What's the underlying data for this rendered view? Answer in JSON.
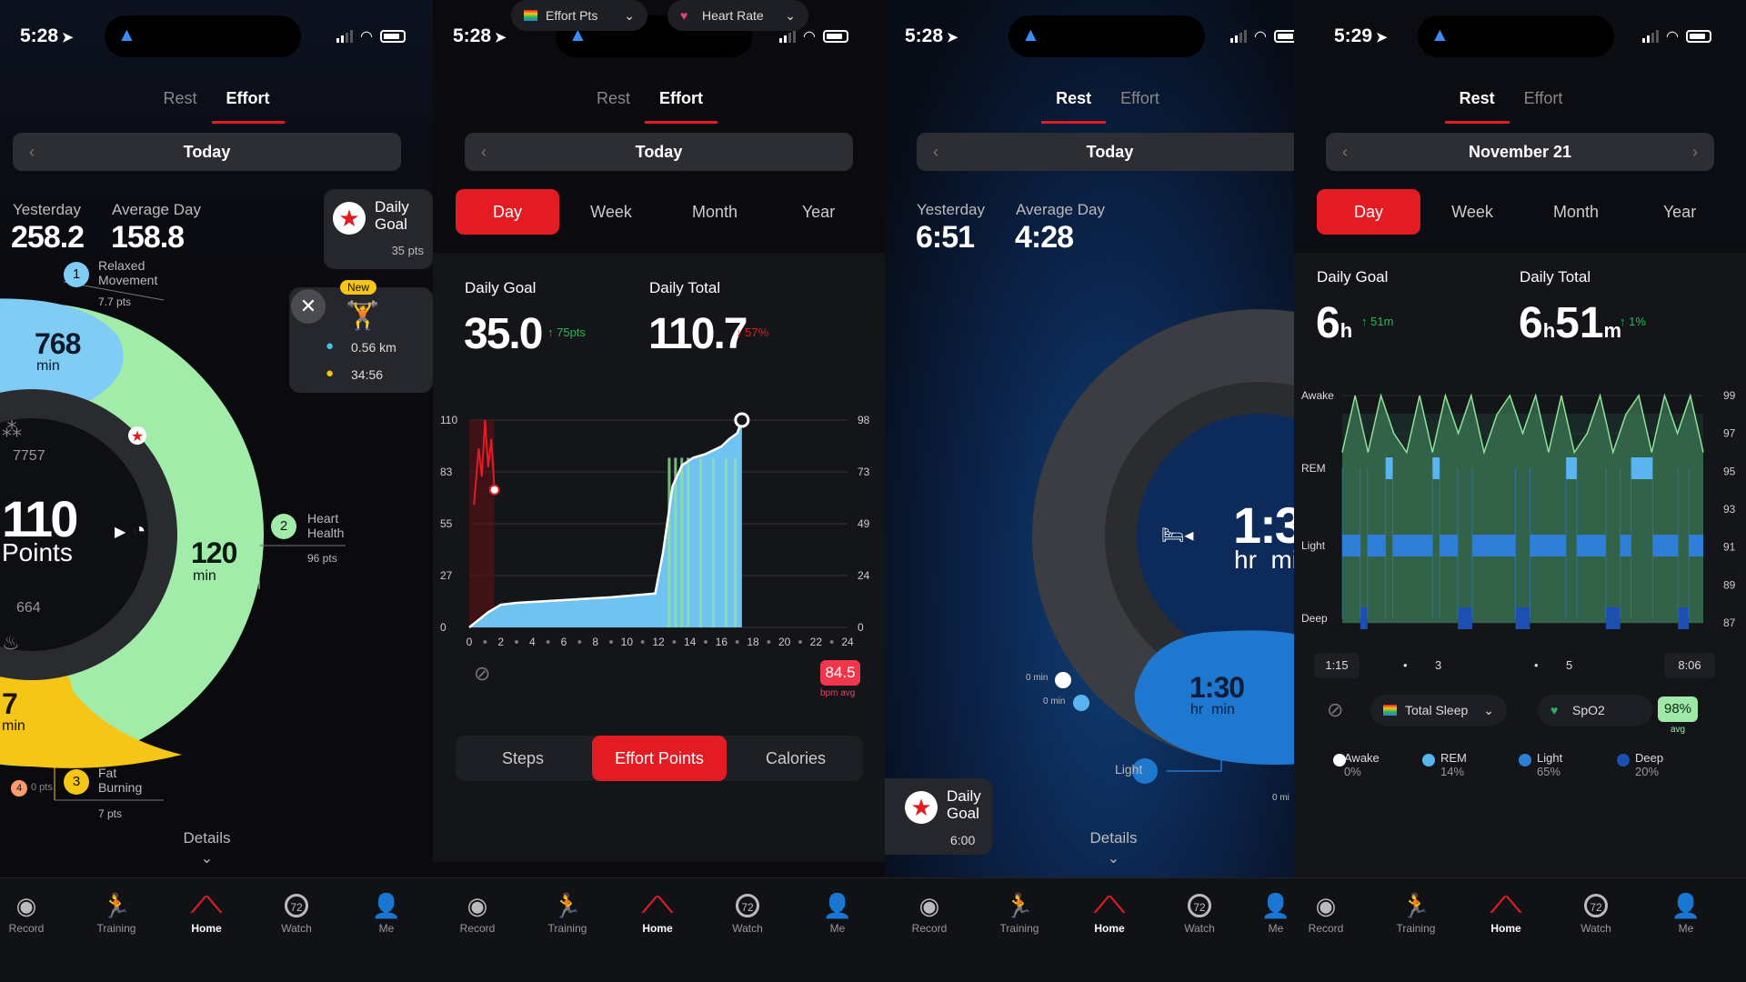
{
  "status": [
    {
      "time": "5:28"
    },
    {
      "time": "5:28"
    },
    {
      "time": "5:28"
    },
    {
      "time": "5:29"
    }
  ],
  "tabs": {
    "rest": "Rest",
    "effort": "Effort"
  },
  "nav": {
    "record": "Record",
    "training": "Training",
    "home": "Home",
    "watch": "Watch",
    "me": "Me",
    "watch_badge": "72"
  },
  "screen1": {
    "date": "Today",
    "yesterday_label": "Yesterday",
    "yesterday_value": "258.2",
    "average_label": "Average Day",
    "average_value": "158.8",
    "goal_label": "Daily Goal",
    "goal_pts": "35 pts",
    "new_badge": "New",
    "activity_distance": "0.56 km",
    "activity_time": "34:56",
    "zone1": {
      "num": "1",
      "name": "Relaxed Movement",
      "pts": "7.7 pts",
      "minutes": "768",
      "unit": "min"
    },
    "zone2": {
      "num": "2",
      "name": "Heart Health",
      "pts": "96 pts",
      "minutes": "120",
      "unit": "min"
    },
    "zone3": {
      "num": "3",
      "name": "Fat Burning",
      "pts": "7 pts",
      "minutes": "7",
      "unit": "min"
    },
    "zone4": {
      "num": "4",
      "pts": "0 pts"
    },
    "center_value": "110",
    "center_unit": "Points",
    "steps": "7757",
    "calories": "664",
    "details": "Details"
  },
  "screen2": {
    "date": "Today",
    "periods": [
      "Day",
      "Week",
      "Month",
      "Year"
    ],
    "goal_label": "Daily Goal",
    "goal_value": "35.0",
    "goal_delta": "75pts",
    "total_label": "Daily Total",
    "total_value": "110.7",
    "total_delta": "57%",
    "effort_pill": "Effort Pts",
    "hr_pill": "Heart Rate",
    "hr_value": "84.5",
    "hr_unit": "bpm avg",
    "metrics": [
      "Steps",
      "Effort Points",
      "Calories"
    ]
  },
  "chart_data": [
    {
      "type": "area",
      "x_ticks": [
        "0",
        "2",
        "4",
        "6",
        "8",
        "10",
        "12",
        "14",
        "16",
        "18",
        "20",
        "22",
        "24"
      ],
      "y_left_ticks": [
        "0",
        "27",
        "55",
        "83",
        "110"
      ],
      "y_right_ticks": [
        "0",
        "24",
        "49",
        "73",
        "98"
      ],
      "ylim": [
        0,
        110
      ],
      "xlim": [
        0,
        24
      ],
      "series": [
        {
          "name": "Effort Pts",
          "x": [
            0,
            1.2,
            2,
            3,
            5,
            7,
            9,
            11.8,
            12.3,
            12.9,
            13.5,
            14.2,
            15,
            16,
            16.5,
            17,
            17.3
          ],
          "y": [
            0,
            8,
            12,
            13,
            14,
            15,
            16,
            18,
            40,
            75,
            86,
            90,
            92,
            96,
            100,
            103,
            110
          ]
        }
      ]
    },
    {
      "type": "line",
      "y_left_labels": [
        "Awake",
        "REM",
        "Light",
        "Deep"
      ],
      "y_right_ticks": [
        "99",
        "97",
        "95",
        "93",
        "91",
        "89",
        "87"
      ],
      "x_labels": [
        "1:15",
        "3",
        "5",
        "8:06"
      ],
      "series": [
        {
          "name": "SpO2",
          "values": [
            96,
            99,
            96,
            99,
            97,
            96,
            99,
            96,
            99,
            97,
            99,
            96,
            98,
            99,
            97,
            99,
            96,
            99,
            96,
            97,
            99,
            96,
            98,
            99,
            96,
            99,
            97,
            99,
            96
          ]
        }
      ]
    }
  ],
  "screen3": {
    "date": "Today",
    "yesterday_label": "Yesterday",
    "yesterday_value": "6:51",
    "average_label": "Average Day",
    "average_value": "4:28",
    "center_value": "1:3",
    "center_unit": "hr  mi",
    "light_value": "1:30",
    "light_unit": "hr  min",
    "light_label": "Light",
    "zero_a": "0 min",
    "zero_b": "0 min",
    "zero_c": "0 mi",
    "goal_label": "Daily Goal",
    "goal_value": "6:00",
    "details": "Details"
  },
  "screen4": {
    "date": "November 21",
    "periods": [
      "Day",
      "Week",
      "Month",
      "Year"
    ],
    "goal_label": "Daily Goal",
    "goal_h": "6",
    "goal_h_unit": "h",
    "goal_delta": "51m",
    "total_label": "Daily Total",
    "total_h": "6",
    "total_h_unit": "h",
    "total_m": "51",
    "total_m_unit": "m",
    "total_delta": "1%",
    "sleep_pill": "Total Sleep",
    "spo2_pill": "SpO2",
    "spo2_value": "98%",
    "spo2_unit": "avg",
    "legend": [
      {
        "name": "Awake",
        "pct": "0%",
        "color": "#ffffff"
      },
      {
        "name": "REM",
        "pct": "14%",
        "color": "#5ab4f0"
      },
      {
        "name": "Light",
        "pct": "65%",
        "color": "#2f7ed8"
      },
      {
        "name": "Deep",
        "pct": "20%",
        "color": "#1d4fb0"
      }
    ]
  }
}
